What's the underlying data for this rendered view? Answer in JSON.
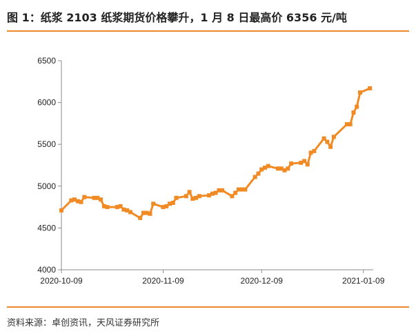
{
  "header": {
    "title": "图 1：纸浆 2103 纸浆期货价格攀升，1 月 8 日最高价 6356 元/吨"
  },
  "footer": {
    "source": "资料来源：卓创资讯，天风证券研究所"
  },
  "colors": {
    "accent": "#e98a2c",
    "series": "#f08a24",
    "axis": "#8c8c8c"
  },
  "chart_data": {
    "type": "line",
    "title": "",
    "xlabel": "",
    "ylabel": "",
    "ylim": [
      4000,
      6500
    ],
    "yticks": [
      4000,
      4500,
      5000,
      5500,
      6000,
      6500
    ],
    "xticks": [
      "2020-10-09",
      "2020-11-09",
      "2020-12-09",
      "2021-01-09"
    ],
    "xrange": [
      "2020-10-09",
      "2021-01-12"
    ],
    "grid": false,
    "legend": "none",
    "series": [
      {
        "x": [
          "2020-10-09",
          "2020-10-12",
          "2020-10-13",
          "2020-10-14",
          "2020-10-15",
          "2020-10-16",
          "2020-10-19",
          "2020-10-20",
          "2020-10-21",
          "2020-10-22",
          "2020-10-23",
          "2020-10-26",
          "2020-10-27",
          "2020-10-28",
          "2020-10-29",
          "2020-10-30",
          "2020-11-02",
          "2020-11-03",
          "2020-11-04",
          "2020-11-05",
          "2020-11-06",
          "2020-11-09",
          "2020-11-10",
          "2020-11-11",
          "2020-11-12",
          "2020-11-13",
          "2020-11-16",
          "2020-11-17",
          "2020-11-18",
          "2020-11-19",
          "2020-11-20",
          "2020-11-23",
          "2020-11-24",
          "2020-11-25",
          "2020-11-26",
          "2020-11-27",
          "2020-11-30",
          "2020-12-01",
          "2020-12-02",
          "2020-12-03",
          "2020-12-04",
          "2020-12-07",
          "2020-12-08",
          "2020-12-09",
          "2020-12-10",
          "2020-12-11",
          "2020-12-14",
          "2020-12-15",
          "2020-12-16",
          "2020-12-17",
          "2020-12-18",
          "2020-12-21",
          "2020-12-22",
          "2020-12-23",
          "2020-12-24",
          "2020-12-25",
          "2020-12-28",
          "2020-12-29",
          "2020-12-30",
          "2020-12-31",
          "2021-01-04",
          "2021-01-05",
          "2021-01-06",
          "2021-01-07",
          "2021-01-08",
          "2021-01-11"
        ],
        "values": [
          4710,
          4830,
          4840,
          4820,
          4810,
          4870,
          4860,
          4860,
          4840,
          4760,
          4750,
          4750,
          4760,
          4720,
          4710,
          4690,
          4620,
          4680,
          4680,
          4670,
          4790,
          4750,
          4760,
          4790,
          4800,
          4860,
          4880,
          4930,
          4850,
          4860,
          4880,
          4890,
          4910,
          4920,
          4950,
          4950,
          4880,
          4920,
          4960,
          4960,
          4960,
          5110,
          5150,
          5200,
          5220,
          5240,
          5210,
          5210,
          5190,
          5210,
          5270,
          5280,
          5300,
          5260,
          5400,
          5420,
          5570,
          5530,
          5470,
          5590,
          5740,
          5740,
          5880,
          5950,
          6120,
          6170
        ]
      }
    ]
  }
}
